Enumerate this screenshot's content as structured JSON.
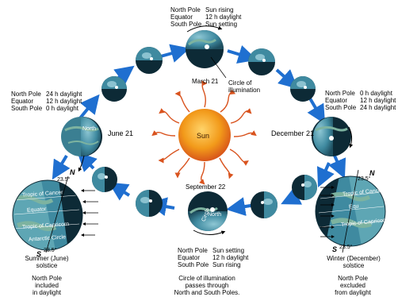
{
  "top_table": [
    {
      "place": "North Pole",
      "cond": "Sun rising"
    },
    {
      "place": "Equator",
      "cond": "12 h daylight"
    },
    {
      "place": "South Pole",
      "cond": "Sun setting"
    }
  ],
  "bottom_table": [
    {
      "place": "North Pole",
      "cond": "Sun setting"
    },
    {
      "place": "Equator",
      "cond": "12 h daylight"
    },
    {
      "place": "South Pole",
      "cond": "Sun rising"
    }
  ],
  "left_table": [
    {
      "place": "North Pole",
      "cond": "24 h daylight"
    },
    {
      "place": "Equator",
      "cond": "12 h daylight"
    },
    {
      "place": "South Pole",
      "cond": "0 h daylight"
    }
  ],
  "right_table": [
    {
      "place": "North Pole",
      "cond": "0 h daylight"
    },
    {
      "place": "Equator",
      "cond": "12 h daylight"
    },
    {
      "place": "South Pole",
      "cond": "24 h daylight"
    }
  ],
  "dates": {
    "march": "March 21",
    "june": "June 21",
    "september": "September 22",
    "december": "December 21"
  },
  "sun_label": "Sun",
  "circle_label": "Circle of illumination",
  "axis": {
    "N": "N",
    "S": "S",
    "tilt": "23.5°"
  },
  "globe_labels": {
    "north": "North",
    "circle": "Circle",
    "tropic_cancer": "Tropic of Cancer",
    "equator": "Equator",
    "tropic_capricorn": "Tropic of Capricorn",
    "antarctic_circle": "Antarctic Circle",
    "equator_short": "Equ"
  },
  "summer_caption": [
    "Summer (June)",
    "solstice"
  ],
  "winter_caption": [
    "Winter (December)",
    "solstice"
  ],
  "summer_note": [
    "North Pole",
    "included",
    "in daylight"
  ],
  "winter_note": [
    "North Pole",
    "excluded",
    "from daylight"
  ],
  "september_note": [
    "Circle of illumination",
    "passes through",
    "North and South Poles."
  ],
  "colors": {
    "ocean": "#2f6f86",
    "night": "#0d2a36",
    "land": "#6f9c8c",
    "sun": "#f29a1a",
    "ray": "#d9531e",
    "orbit_arrow": "#1f6fd0"
  }
}
